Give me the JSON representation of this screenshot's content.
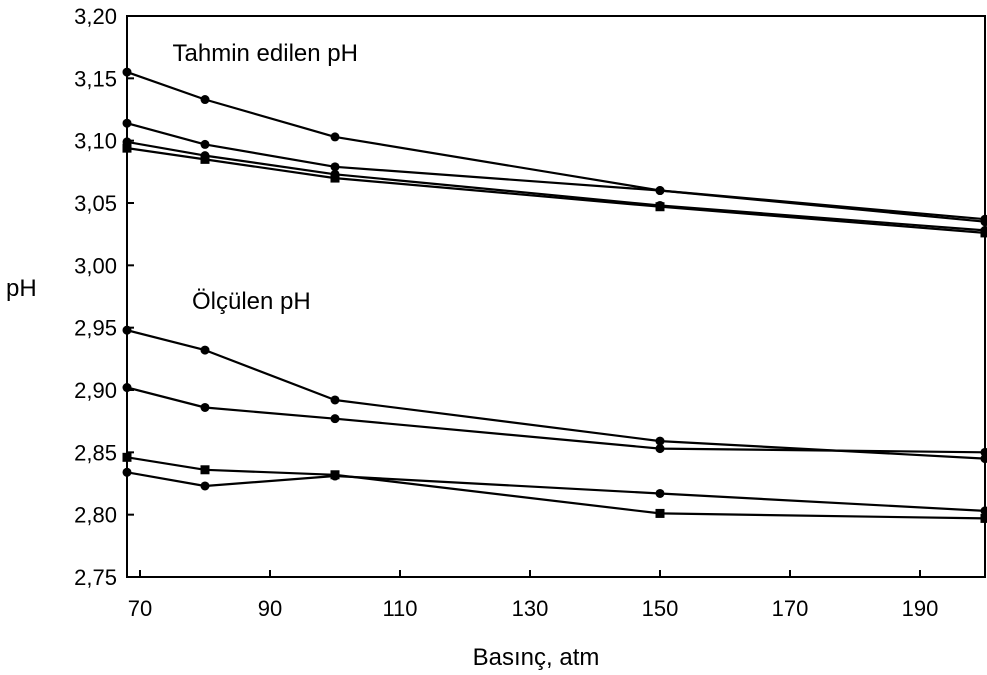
{
  "chart_data": {
    "type": "line",
    "xlabel": "Basınç, atm",
    "ylabel": "pH",
    "xlim": [
      68,
      200
    ],
    "ylim": [
      2.75,
      3.2
    ],
    "xticks": [
      70,
      90,
      110,
      130,
      150,
      170,
      190
    ],
    "yticks": [
      2.75,
      2.8,
      2.85,
      2.9,
      2.95,
      3.0,
      3.05,
      3.1,
      3.15,
      3.2
    ],
    "ytick_labels": [
      "2,75",
      "2,80",
      "2,85",
      "2,90",
      "2,95",
      "3,00",
      "3,05",
      "3,10",
      "3,15",
      "3,20"
    ],
    "grid": false,
    "annotations": [
      {
        "text": "Tahmin edilen pH",
        "x": 75,
        "y": 3.164
      },
      {
        "text": "Ölçülen pH",
        "x": 78,
        "y": 2.965
      }
    ],
    "series": [
      {
        "group": "Tahmin edilen pH",
        "marker": "circle",
        "x": [
          68,
          80,
          100,
          150,
          200
        ],
        "y": [
          3.155,
          3.133,
          3.103,
          3.06,
          3.037
        ]
      },
      {
        "group": "Tahmin edilen pH",
        "marker": "circle",
        "x": [
          68,
          80,
          100,
          150,
          200
        ],
        "y": [
          3.114,
          3.097,
          3.079,
          3.06,
          3.035
        ]
      },
      {
        "group": "Tahmin edilen pH",
        "marker": "circle",
        "x": [
          68,
          80,
          100,
          150,
          200
        ],
        "y": [
          3.099,
          3.088,
          3.073,
          3.048,
          3.028
        ]
      },
      {
        "group": "Tahmin edilen pH",
        "marker": "square",
        "x": [
          68,
          80,
          100,
          150,
          200
        ],
        "y": [
          3.094,
          3.085,
          3.07,
          3.047,
          3.026
        ]
      },
      {
        "group": "Ölçülen pH",
        "marker": "circle",
        "x": [
          68,
          80,
          100,
          150,
          200
        ],
        "y": [
          2.948,
          2.932,
          2.892,
          2.859,
          2.845
        ]
      },
      {
        "group": "Ölçülen pH",
        "marker": "circle",
        "x": [
          68,
          80,
          100,
          150,
          200
        ],
        "y": [
          2.902,
          2.886,
          2.877,
          2.853,
          2.85
        ]
      },
      {
        "group": "Ölçülen pH",
        "marker": "square",
        "x": [
          68,
          80,
          100,
          150,
          200
        ],
        "y": [
          2.846,
          2.836,
          2.832,
          2.801,
          2.797
        ]
      },
      {
        "group": "Ölçülen pH",
        "marker": "circle",
        "x": [
          68,
          80,
          100,
          150,
          200
        ],
        "y": [
          2.834,
          2.823,
          2.831,
          2.817,
          2.803
        ]
      }
    ]
  }
}
